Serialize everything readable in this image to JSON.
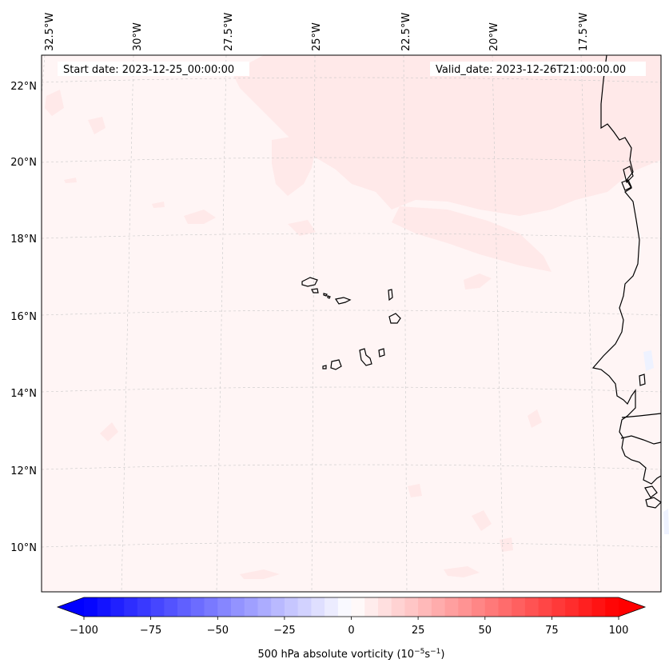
{
  "header": {
    "start_date": "Start date: 2023-12-25_00:00:00",
    "valid_date": "Valid_date: 2023-12-26T21:00:00.00"
  },
  "lon_labels": [
    "32.5°W",
    "30°W",
    "27.5°W",
    "25°W",
    "22.5°W",
    "20°W",
    "17.5°W"
  ],
  "lat_labels": [
    "22°N",
    "20°N",
    "18°N",
    "16°N",
    "14°N",
    "12°N",
    "10°N"
  ],
  "colorbar": {
    "ticks": [
      "−100",
      "−75",
      "−50",
      "−25",
      "0",
      "25",
      "50",
      "75",
      "100"
    ],
    "label_main": "500 hPa absolute vorticity (10",
    "label_exp1": "−5",
    "label_mid": "s",
    "label_exp2": "−1",
    "label_end": ")",
    "min": -100,
    "max": 100,
    "levels": 41,
    "colormap": "bwr",
    "low_color": "#0000ff",
    "mid_color": "#ffffff",
    "high_color": "#ff0000"
  },
  "field": {
    "background_color": "#fff5f5",
    "patch_color": "#ffe9e9",
    "weak_negative_color": "#eef2ff"
  }
}
